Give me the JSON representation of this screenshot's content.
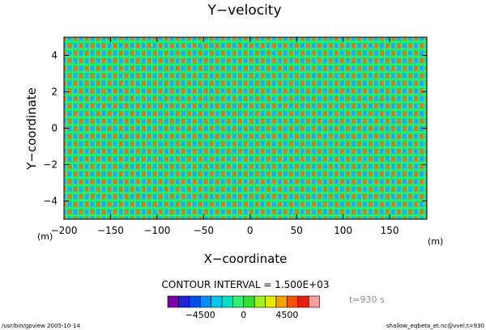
{
  "chart_data": {
    "type": "heatmap",
    "title": "Y−velocity",
    "xlabel": "X−coordinate",
    "ylabel": "Y−coordinate",
    "x_unit": "(m)",
    "y_unit": "(m)",
    "xlim": [
      -200,
      190
    ],
    "ylim": [
      -5,
      5
    ],
    "x_ticks": [
      -200,
      -150,
      -100,
      -50,
      0,
      50,
      100,
      150
    ],
    "x_tick_labels": [
      "−200",
      "−150",
      "−100",
      "−50",
      "0",
      "50",
      "100",
      "150"
    ],
    "y_ticks": [
      -4,
      -2,
      0,
      2,
      4
    ],
    "y_tick_labels": [
      "−4",
      "−2",
      "0",
      "2",
      "4"
    ],
    "pattern": {
      "x_wavelength": 12.2,
      "y_wavelength": 0.83
    },
    "contour_interval_label": "CONTOUR INTERVAL = 1.500E+03",
    "time_label": "t=930 s",
    "colorbar": {
      "colors": [
        "#7a00a8",
        "#2020d8",
        "#0050f0",
        "#0090f8",
        "#00c8f0",
        "#00e0c0",
        "#30f070",
        "#30e030",
        "#a0f020",
        "#e8e800",
        "#f8a000",
        "#f85000",
        "#e82010",
        "#f8a0a0"
      ],
      "tick_labels": [
        "−4500",
        "0",
        "4500"
      ],
      "tick_index": [
        3,
        7,
        11
      ]
    }
  },
  "footer": {
    "left": "/usr/bin/gpview  2005-10-14",
    "right": "shallow_eqbeta_et.nc@vvel,t=930"
  }
}
